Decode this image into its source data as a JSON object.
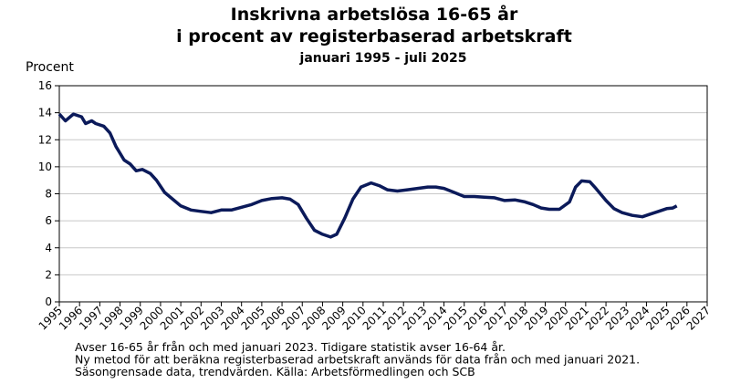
{
  "chart_data": {
    "type": "line",
    "title": [
      "Inskrivna arbetslösa 16-65 år",
      "i procent av registerbaserad arbetskraft"
    ],
    "subtitle": "januari 1995 - juli 2025",
    "y_label": "Procent",
    "notes": [
      "Avser 16-65 år från och med januari 2023. Tidigare statistik avser 16-64 år.",
      "Ny metod för att beräkna registerbaserad arbetskraft används för data från och med januari 2021.",
      "Säsongrensade data, trendvärden. Källa: Arbetsförmedlingen och SCB"
    ],
    "x": [
      1995.0,
      1995.3,
      1995.7,
      1996.1,
      1996.3,
      1996.6,
      1996.8,
      1997.2,
      1997.5,
      1997.8,
      1998.2,
      1998.5,
      1998.8,
      1999.1,
      1999.5,
      1999.8,
      2000.2,
      2000.6,
      2001.0,
      2001.5,
      2002.0,
      2002.5,
      2003.0,
      2003.5,
      2004.0,
      2004.5,
      2005.0,
      2005.5,
      2006.0,
      2006.4,
      2006.8,
      2007.2,
      2007.6,
      2008.0,
      2008.4,
      2008.7,
      2009.1,
      2009.5,
      2009.9,
      2010.4,
      2010.8,
      2011.2,
      2011.7,
      2012.2,
      2012.7,
      2013.2,
      2013.6,
      2014.0,
      2014.5,
      2015.0,
      2015.5,
      2016.0,
      2016.5,
      2017.0,
      2017.5,
      2018.0,
      2018.4,
      2018.8,
      2019.2,
      2019.7,
      2020.2,
      2020.5,
      2020.8,
      2021.2,
      2021.5,
      2022.0,
      2022.4,
      2022.8,
      2023.3,
      2023.8,
      2024.2,
      2024.6,
      2025.0,
      2025.3,
      2025.5
    ],
    "series": [
      {
        "name": "Inskrivna arbetslösa",
        "color": "#0b1a5a",
        "values": [
          13.9,
          13.4,
          13.9,
          13.7,
          13.2,
          13.4,
          13.2,
          13.0,
          12.5,
          11.5,
          10.5,
          10.2,
          9.7,
          9.8,
          9.5,
          9.0,
          8.1,
          7.6,
          7.1,
          6.8,
          6.7,
          6.6,
          6.8,
          6.8,
          7.0,
          7.2,
          7.5,
          7.65,
          7.7,
          7.6,
          7.2,
          6.2,
          5.3,
          5.0,
          4.8,
          5.0,
          6.2,
          7.6,
          8.5,
          8.8,
          8.6,
          8.3,
          8.2,
          8.3,
          8.4,
          8.5,
          8.5,
          8.4,
          8.1,
          7.8,
          7.8,
          7.75,
          7.7,
          7.5,
          7.55,
          7.4,
          7.2,
          6.95,
          6.85,
          6.85,
          7.4,
          8.5,
          8.95,
          8.9,
          8.4,
          7.5,
          6.9,
          6.6,
          6.4,
          6.3,
          6.5,
          6.7,
          6.9,
          6.95,
          7.1
        ]
      }
    ],
    "xlim": [
      1995,
      2027
    ],
    "xticks": [
      1995,
      1996,
      1997,
      1998,
      1999,
      2000,
      2001,
      2002,
      2003,
      2004,
      2005,
      2006,
      2007,
      2008,
      2009,
      2010,
      2011,
      2012,
      2013,
      2014,
      2015,
      2016,
      2017,
      2018,
      2019,
      2020,
      2021,
      2022,
      2023,
      2024,
      2025,
      2026,
      2027
    ],
    "ylim": [
      0,
      16
    ],
    "yticks": [
      0,
      2,
      4,
      6,
      8,
      10,
      12,
      14,
      16
    ],
    "grid": true
  }
}
